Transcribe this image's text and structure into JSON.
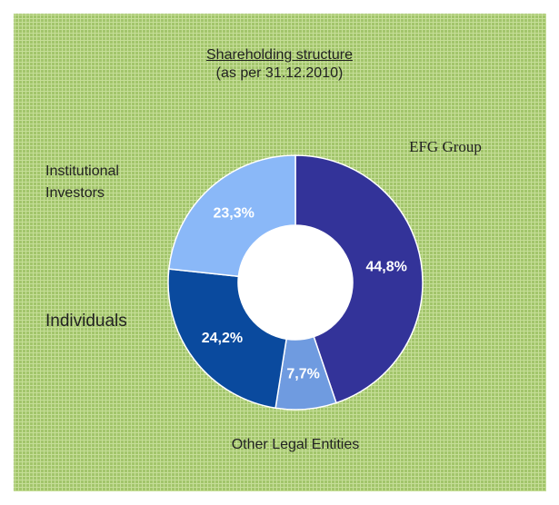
{
  "chart_data": {
    "type": "donut",
    "title": "Shareholding structure",
    "subtitle": "(as per 31.12.2010)",
    "categories": [
      "EFG Group",
      "Other Legal Entities",
      "Individuals",
      "Institutional Investors"
    ],
    "values": [
      44.8,
      7.7,
      24.2,
      23.3
    ],
    "value_labels": [
      "44,8%",
      "7,7%",
      "24,2%",
      "23,3%"
    ],
    "colors": [
      "#333399",
      "#6f9be0",
      "#0a4a9e",
      "#8ab8f8"
    ]
  }
}
